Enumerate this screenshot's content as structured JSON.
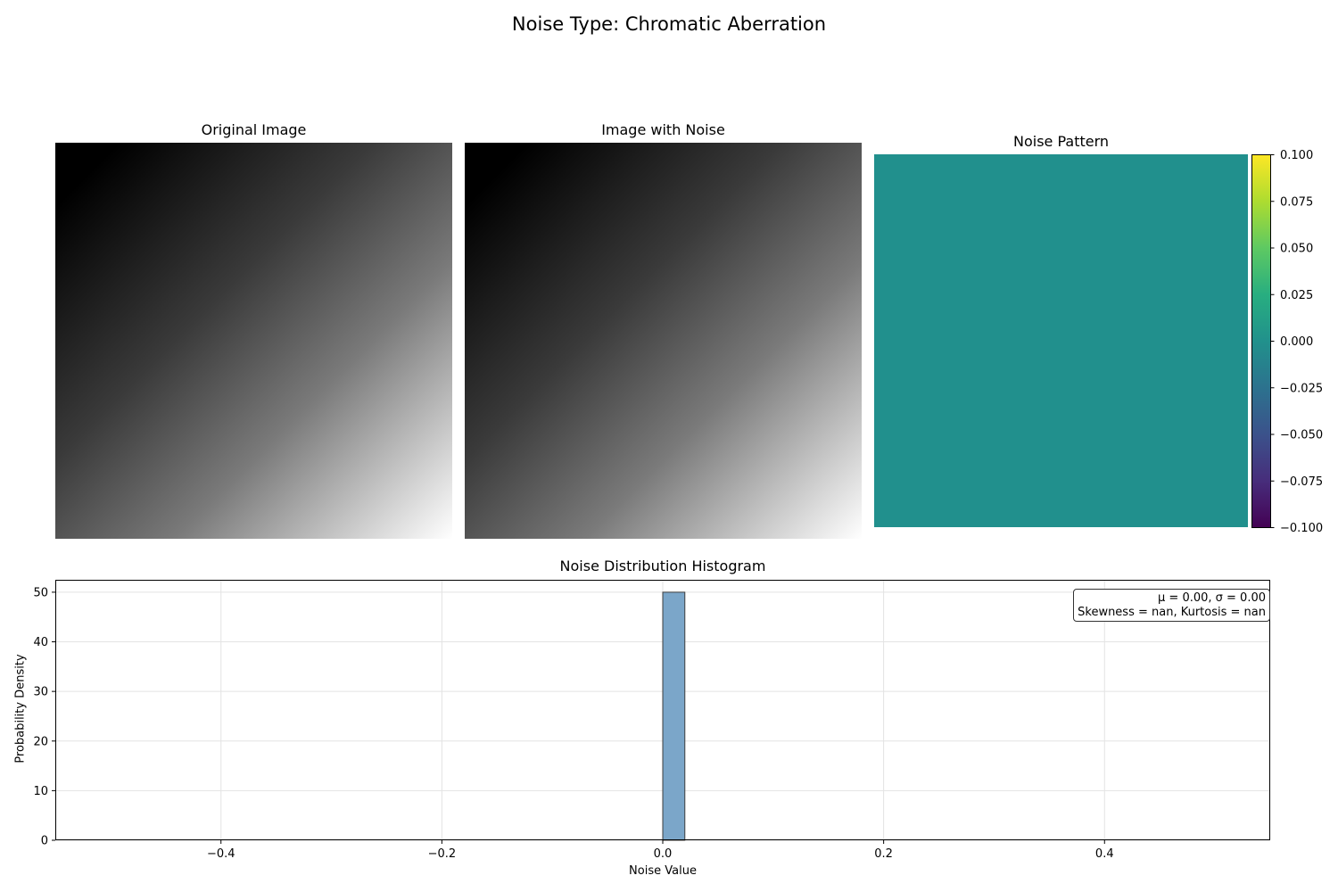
{
  "suptitle": "Noise Type: Chromatic Aberration",
  "panels": {
    "original_title": "Original Image",
    "noisy_title": "Image with Noise",
    "noise_title": "Noise Pattern"
  },
  "colorbar": {
    "ticks": [
      "0.100",
      "0.075",
      "0.050",
      "0.025",
      "0.000",
      "−0.025",
      "−0.050",
      "−0.075",
      "−0.100"
    ],
    "range": [
      -0.1,
      0.1
    ],
    "colormap": "viridis"
  },
  "noise_fill_color": "#21908d",
  "chart_data": {
    "type": "bar",
    "title": "Noise Distribution Histogram",
    "xlabel": "Noise Value",
    "ylabel": "Probability Density",
    "xlim": [
      -0.55,
      0.55
    ],
    "ylim": [
      0,
      52.5
    ],
    "xticks": [
      -0.4,
      -0.2,
      0.0,
      0.2,
      0.4
    ],
    "xtick_labels": [
      "−0.4",
      "−0.2",
      "0.0",
      "0.2",
      "0.4"
    ],
    "yticks": [
      0,
      10,
      20,
      30,
      40,
      50
    ],
    "ytick_labels": [
      "0",
      "10",
      "20",
      "30",
      "40",
      "50"
    ],
    "bins": [
      {
        "x0": 0.0,
        "x1": 0.02,
        "value": 50
      }
    ],
    "baseline_range": [
      -0.5,
      0.5
    ],
    "bar_color": "#7ba6c9",
    "grid": true,
    "annotation": {
      "line1": "μ = 0.00, σ = 0.00",
      "line2": "Skewness = nan, Kurtosis = nan",
      "placement": "top-right"
    }
  }
}
